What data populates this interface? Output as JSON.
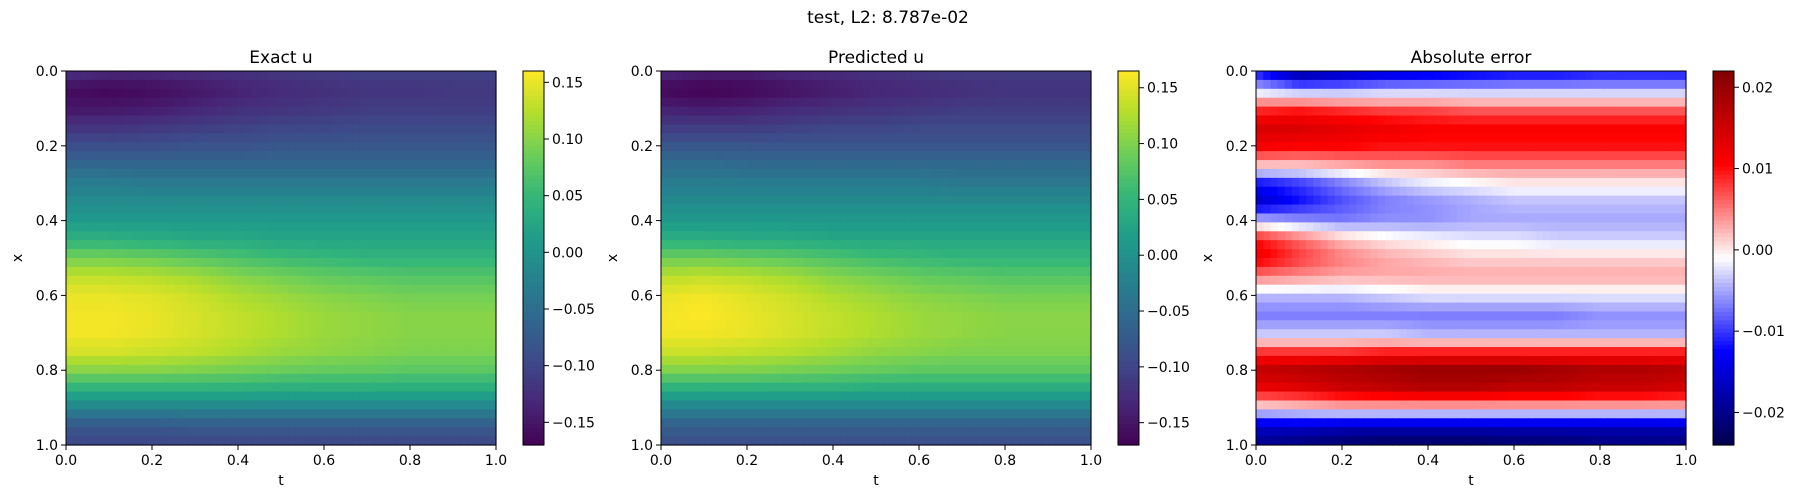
{
  "figure": {
    "suptitle": "test, L2: 8.787e-02"
  },
  "chart_data": [
    {
      "type": "heatmap",
      "title": "Exact u",
      "xlabel": "t",
      "ylabel": "x",
      "xlim": [
        0.0,
        1.0
      ],
      "ylim": [
        1.0,
        0.0
      ],
      "xticks": [
        "0.0",
        "0.2",
        "0.4",
        "0.6",
        "0.8",
        "1.0"
      ],
      "yticks": [
        "0.0",
        "0.2",
        "0.4",
        "0.6",
        "0.8",
        "1.0"
      ],
      "colormap": "viridis",
      "colorbar": {
        "range": [
          -0.17,
          0.16
        ],
        "ticks": [
          0.15,
          0.1,
          0.05,
          0.0,
          -0.05,
          -0.1,
          -0.15
        ],
        "tick_labels": [
          "0.15",
          "0.10",
          "0.05",
          "0.00",
          "−0.05",
          "−0.10",
          "−0.15"
        ]
      },
      "x_samples": [
        0.0,
        0.05,
        0.1,
        0.15,
        0.2,
        0.25,
        0.3,
        0.35,
        0.4,
        0.45,
        0.5,
        0.55,
        0.6,
        0.65,
        0.7,
        0.75,
        0.8,
        0.85,
        0.9,
        0.95,
        1.0
      ],
      "t_samples": [
        0.0,
        0.1,
        0.2,
        0.3,
        0.4,
        0.5,
        0.6,
        0.7,
        0.8,
        0.9,
        1.0
      ],
      "values": [
        [
          -0.12,
          -0.13,
          -0.13,
          -0.125,
          -0.12,
          -0.115,
          -0.11,
          -0.105,
          -0.105,
          -0.105,
          -0.105
        ],
        [
          -0.16,
          -0.165,
          -0.16,
          -0.15,
          -0.14,
          -0.13,
          -0.125,
          -0.12,
          -0.12,
          -0.115,
          -0.115
        ],
        [
          -0.15,
          -0.15,
          -0.145,
          -0.135,
          -0.125,
          -0.12,
          -0.115,
          -0.11,
          -0.11,
          -0.11,
          -0.11
        ],
        [
          -0.12,
          -0.12,
          -0.115,
          -0.11,
          -0.105,
          -0.1,
          -0.1,
          -0.095,
          -0.095,
          -0.095,
          -0.095
        ],
        [
          -0.09,
          -0.09,
          -0.09,
          -0.085,
          -0.085,
          -0.08,
          -0.08,
          -0.08,
          -0.08,
          -0.08,
          -0.08
        ],
        [
          -0.06,
          -0.06,
          -0.06,
          -0.06,
          -0.06,
          -0.06,
          -0.06,
          -0.06,
          -0.06,
          -0.06,
          -0.06
        ],
        [
          -0.03,
          -0.03,
          -0.035,
          -0.035,
          -0.035,
          -0.035,
          -0.035,
          -0.035,
          -0.035,
          -0.035,
          -0.035
        ],
        [
          -0.01,
          -0.01,
          -0.01,
          -0.01,
          -0.01,
          -0.01,
          -0.01,
          -0.01,
          -0.01,
          -0.01,
          -0.01
        ],
        [
          0.01,
          0.01,
          0.01,
          0.01,
          0.01,
          0.01,
          0.01,
          0.01,
          0.01,
          0.01,
          0.01
        ],
        [
          0.04,
          0.04,
          0.035,
          0.03,
          0.03,
          0.025,
          0.025,
          0.025,
          0.025,
          0.025,
          0.025
        ],
        [
          0.09,
          0.09,
          0.085,
          0.075,
          0.065,
          0.055,
          0.05,
          0.045,
          0.045,
          0.045,
          0.045
        ],
        [
          0.13,
          0.13,
          0.125,
          0.115,
          0.1,
          0.09,
          0.08,
          0.075,
          0.07,
          0.07,
          0.07
        ],
        [
          0.15,
          0.15,
          0.145,
          0.135,
          0.12,
          0.11,
          0.1,
          0.095,
          0.09,
          0.09,
          0.09
        ],
        [
          0.155,
          0.155,
          0.15,
          0.14,
          0.13,
          0.12,
          0.11,
          0.105,
          0.1,
          0.1,
          0.1
        ],
        [
          0.155,
          0.155,
          0.15,
          0.14,
          0.13,
          0.12,
          0.11,
          0.105,
          0.1,
          0.1,
          0.1
        ],
        [
          0.14,
          0.14,
          0.135,
          0.13,
          0.12,
          0.11,
          0.105,
          0.1,
          0.095,
          0.095,
          0.095
        ],
        [
          0.1,
          0.1,
          0.1,
          0.095,
          0.09,
          0.085,
          0.08,
          0.08,
          0.075,
          0.075,
          0.075
        ],
        [
          0.04,
          0.04,
          0.04,
          0.04,
          0.04,
          0.035,
          0.035,
          0.035,
          0.035,
          0.035,
          0.035
        ],
        [
          -0.02,
          -0.02,
          -0.02,
          -0.02,
          -0.02,
          -0.02,
          -0.02,
          -0.02,
          -0.02,
          -0.02,
          -0.02
        ],
        [
          -0.08,
          -0.08,
          -0.08,
          -0.075,
          -0.075,
          -0.075,
          -0.075,
          -0.075,
          -0.075,
          -0.075,
          -0.075
        ],
        [
          -0.1,
          -0.1,
          -0.1,
          -0.1,
          -0.1,
          -0.1,
          -0.1,
          -0.1,
          -0.1,
          -0.1,
          -0.1
        ]
      ]
    },
    {
      "type": "heatmap",
      "title": "Predicted u",
      "xlabel": "t",
      "ylabel": "x",
      "xlim": [
        0.0,
        1.0
      ],
      "ylim": [
        1.0,
        0.0
      ],
      "xticks": [
        "0.0",
        "0.2",
        "0.4",
        "0.6",
        "0.8",
        "1.0"
      ],
      "yticks": [
        "0.0",
        "0.2",
        "0.4",
        "0.6",
        "0.8",
        "1.0"
      ],
      "colormap": "viridis",
      "colorbar": {
        "range": [
          -0.17,
          0.165
        ],
        "ticks": [
          0.15,
          0.1,
          0.05,
          0.0,
          -0.05,
          -0.1,
          -0.15
        ],
        "tick_labels": [
          "0.15",
          "0.10",
          "0.05",
          "0.00",
          "−0.05",
          "−0.10",
          "−0.15"
        ]
      },
      "x_samples": [
        0.0,
        0.05,
        0.1,
        0.15,
        0.2,
        0.25,
        0.3,
        0.35,
        0.4,
        0.45,
        0.5,
        0.55,
        0.6,
        0.65,
        0.7,
        0.75,
        0.8,
        0.85,
        0.9,
        0.95,
        1.0
      ],
      "t_samples": [
        0.0,
        0.1,
        0.2,
        0.3,
        0.4,
        0.5,
        0.6,
        0.7,
        0.8,
        0.9,
        1.0
      ],
      "values": [
        [
          -0.13,
          -0.14,
          -0.14,
          -0.13,
          -0.125,
          -0.12,
          -0.115,
          -0.11,
          -0.11,
          -0.11,
          -0.11
        ],
        [
          -0.165,
          -0.17,
          -0.165,
          -0.155,
          -0.145,
          -0.135,
          -0.13,
          -0.125,
          -0.12,
          -0.12,
          -0.12
        ],
        [
          -0.14,
          -0.145,
          -0.14,
          -0.13,
          -0.125,
          -0.12,
          -0.115,
          -0.11,
          -0.11,
          -0.11,
          -0.11
        ],
        [
          -0.11,
          -0.11,
          -0.11,
          -0.105,
          -0.1,
          -0.1,
          -0.095,
          -0.095,
          -0.095,
          -0.095,
          -0.095
        ],
        [
          -0.08,
          -0.08,
          -0.08,
          -0.08,
          -0.08,
          -0.08,
          -0.08,
          -0.08,
          -0.08,
          -0.08,
          -0.08
        ],
        [
          -0.05,
          -0.05,
          -0.055,
          -0.055,
          -0.055,
          -0.055,
          -0.055,
          -0.055,
          -0.055,
          -0.055,
          -0.055
        ],
        [
          -0.03,
          -0.03,
          -0.03,
          -0.03,
          -0.03,
          -0.03,
          -0.03,
          -0.035,
          -0.035,
          -0.035,
          -0.035
        ],
        [
          -0.01,
          -0.01,
          -0.01,
          -0.01,
          -0.01,
          -0.01,
          -0.01,
          -0.01,
          -0.01,
          -0.01,
          -0.01
        ],
        [
          0.01,
          0.01,
          0.01,
          0.01,
          0.01,
          0.01,
          0.01,
          0.01,
          0.01,
          0.01,
          0.01
        ],
        [
          0.04,
          0.04,
          0.035,
          0.035,
          0.03,
          0.03,
          0.03,
          0.03,
          0.03,
          0.03,
          0.03
        ],
        [
          0.09,
          0.09,
          0.085,
          0.08,
          0.07,
          0.06,
          0.055,
          0.05,
          0.05,
          0.05,
          0.05
        ],
        [
          0.13,
          0.135,
          0.13,
          0.12,
          0.105,
          0.095,
          0.085,
          0.08,
          0.075,
          0.075,
          0.075
        ],
        [
          0.155,
          0.16,
          0.15,
          0.14,
          0.125,
          0.115,
          0.105,
          0.1,
          0.095,
          0.095,
          0.095
        ],
        [
          0.16,
          0.165,
          0.155,
          0.145,
          0.135,
          0.125,
          0.115,
          0.11,
          0.105,
          0.105,
          0.105
        ],
        [
          0.16,
          0.16,
          0.155,
          0.145,
          0.135,
          0.125,
          0.115,
          0.11,
          0.105,
          0.105,
          0.105
        ],
        [
          0.14,
          0.14,
          0.135,
          0.13,
          0.12,
          0.11,
          0.105,
          0.1,
          0.1,
          0.1,
          0.1
        ],
        [
          0.1,
          0.1,
          0.1,
          0.095,
          0.09,
          0.085,
          0.08,
          0.08,
          0.08,
          0.08,
          0.08
        ],
        [
          0.04,
          0.04,
          0.04,
          0.04,
          0.04,
          0.035,
          0.035,
          0.035,
          0.035,
          0.035,
          0.035
        ],
        [
          -0.02,
          -0.02,
          -0.02,
          -0.02,
          -0.02,
          -0.02,
          -0.02,
          -0.02,
          -0.02,
          -0.02,
          -0.02
        ],
        [
          -0.07,
          -0.07,
          -0.07,
          -0.07,
          -0.07,
          -0.07,
          -0.07,
          -0.07,
          -0.07,
          -0.07,
          -0.07
        ],
        [
          -0.09,
          -0.09,
          -0.09,
          -0.09,
          -0.09,
          -0.09,
          -0.09,
          -0.09,
          -0.09,
          -0.09,
          -0.09
        ]
      ]
    },
    {
      "type": "heatmap",
      "title": "Absolute error",
      "xlabel": "t",
      "ylabel": "x",
      "xlim": [
        0.0,
        1.0
      ],
      "ylim": [
        1.0,
        0.0
      ],
      "xticks": [
        "0.0",
        "0.2",
        "0.4",
        "0.6",
        "0.8",
        "1.0"
      ],
      "yticks": [
        "0.0",
        "0.2",
        "0.4",
        "0.6",
        "0.8",
        "1.0"
      ],
      "colormap": "seismic",
      "colorbar": {
        "range": [
          -0.024,
          0.022
        ],
        "ticks": [
          0.02,
          0.01,
          0.0,
          -0.01,
          -0.02
        ],
        "tick_labels": [
          "0.02",
          "0.01",
          "0.00",
          "−0.01",
          "−0.02"
        ]
      },
      "x_samples": [
        0.0,
        0.05,
        0.1,
        0.15,
        0.2,
        0.25,
        0.3,
        0.35,
        0.4,
        0.45,
        0.5,
        0.55,
        0.6,
        0.65,
        0.7,
        0.75,
        0.8,
        0.85,
        0.9,
        0.95,
        1.0
      ],
      "t_samples": [
        0.0,
        0.1,
        0.2,
        0.3,
        0.4,
        0.5,
        0.6,
        0.7,
        0.8,
        0.9,
        1.0
      ],
      "values": [
        [
          -0.012,
          -0.02,
          -0.018,
          -0.016,
          -0.015,
          -0.014,
          -0.013,
          -0.013,
          -0.012,
          -0.012,
          -0.012
        ],
        [
          -0.004,
          -0.006,
          -0.006,
          -0.005,
          -0.005,
          -0.005,
          -0.005,
          -0.005,
          -0.005,
          -0.005,
          -0.005
        ],
        [
          0.008,
          0.009,
          0.008,
          0.007,
          0.007,
          0.006,
          0.006,
          0.006,
          0.006,
          0.006,
          0.006
        ],
        [
          0.014,
          0.014,
          0.013,
          0.012,
          0.011,
          0.011,
          0.011,
          0.011,
          0.011,
          0.011,
          0.011
        ],
        [
          0.012,
          0.011,
          0.011,
          0.01,
          0.01,
          0.01,
          0.01,
          0.01,
          0.01,
          0.01,
          0.01
        ],
        [
          0.002,
          0.002,
          0.003,
          0.004,
          0.004,
          0.005,
          0.005,
          0.005,
          0.005,
          0.005,
          0.005
        ],
        [
          -0.012,
          -0.01,
          -0.007,
          -0.004,
          -0.002,
          -0.001,
          0.0,
          0.0,
          0.0,
          0.0,
          0.0
        ],
        [
          -0.016,
          -0.012,
          -0.009,
          -0.007,
          -0.006,
          -0.005,
          -0.004,
          -0.004,
          -0.004,
          -0.004,
          -0.004
        ],
        [
          -0.004,
          -0.006,
          -0.007,
          -0.006,
          -0.006,
          -0.005,
          -0.005,
          -0.005,
          -0.005,
          -0.005,
          -0.005
        ],
        [
          0.01,
          0.006,
          0.002,
          0.0,
          -0.001,
          -0.002,
          -0.002,
          -0.003,
          -0.003,
          -0.003,
          -0.003
        ],
        [
          0.012,
          0.008,
          0.005,
          0.003,
          0.002,
          0.001,
          0.001,
          0.001,
          0.001,
          0.001,
          0.001
        ],
        [
          0.005,
          0.004,
          0.003,
          0.003,
          0.003,
          0.003,
          0.003,
          0.003,
          0.003,
          0.003,
          0.003
        ],
        [
          -0.004,
          -0.004,
          -0.004,
          -0.003,
          -0.002,
          -0.002,
          -0.002,
          -0.002,
          -0.002,
          -0.002,
          -0.002
        ],
        [
          -0.007,
          -0.007,
          -0.007,
          -0.007,
          -0.007,
          -0.007,
          -0.007,
          -0.007,
          -0.006,
          -0.006,
          -0.006
        ],
        [
          -0.004,
          -0.004,
          -0.004,
          -0.004,
          -0.005,
          -0.005,
          -0.005,
          -0.005,
          -0.005,
          -0.005,
          -0.005
        ],
        [
          0.008,
          0.008,
          0.008,
          0.009,
          0.009,
          0.009,
          0.009,
          0.009,
          0.009,
          0.009,
          0.009
        ],
        [
          0.016,
          0.017,
          0.018,
          0.019,
          0.02,
          0.02,
          0.02,
          0.019,
          0.018,
          0.018,
          0.017
        ],
        [
          0.012,
          0.013,
          0.015,
          0.016,
          0.017,
          0.017,
          0.016,
          0.016,
          0.015,
          0.015,
          0.014
        ],
        [
          0.0,
          0.001,
          0.002,
          0.002,
          0.002,
          0.002,
          0.002,
          0.002,
          0.002,
          0.002,
          0.002
        ],
        [
          -0.016,
          -0.016,
          -0.017,
          -0.017,
          -0.017,
          -0.017,
          -0.017,
          -0.017,
          -0.017,
          -0.017,
          -0.017
        ],
        [
          -0.02,
          -0.021,
          -0.022,
          -0.023,
          -0.023,
          -0.023,
          -0.022,
          -0.022,
          -0.021,
          -0.021,
          -0.021
        ]
      ]
    }
  ]
}
